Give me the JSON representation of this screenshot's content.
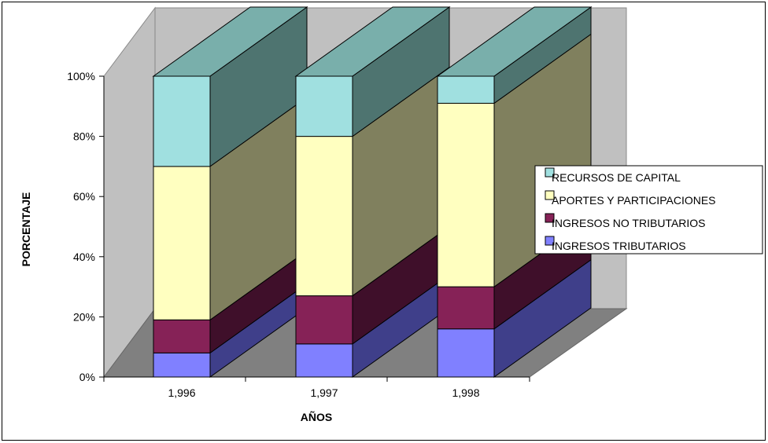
{
  "chart_data": {
    "type": "bar",
    "stacked": true,
    "three_d": true,
    "categories": [
      "1,996",
      "1,997",
      "1,998"
    ],
    "series": [
      {
        "name": "INGRESOS TRIBUTARIOS",
        "values": [
          8,
          11,
          16
        ],
        "color": "#8080FF",
        "dark": "#3F3F8A"
      },
      {
        "name": "INGRESOS NO TRIBUTARIOS",
        "values": [
          11,
          16,
          14
        ],
        "color": "#862257",
        "dark": "#3F0F2A"
      },
      {
        "name": "APORTES Y PARTICIPACIONES",
        "values": [
          51,
          53,
          61
        ],
        "color": "#FFFFC0",
        "dark": "#80805E"
      },
      {
        "name": "RECURSOS DE CAPITAL",
        "values": [
          30,
          20,
          9
        ],
        "color": "#A0E0E0",
        "dark": "#4E7470",
        "topcolor": "#79AFAB"
      }
    ],
    "xlabel": "AÑOS",
    "ylabel": "PORCENTAJE",
    "yticks": [
      "0%",
      "20%",
      "40%",
      "60%",
      "80%",
      "100%"
    ],
    "ylim": [
      0,
      100
    ],
    "grid": false,
    "legend_position": "right"
  },
  "colors": {
    "wall": "#C0C0C0",
    "floor": "#808080",
    "border": "#000000"
  }
}
